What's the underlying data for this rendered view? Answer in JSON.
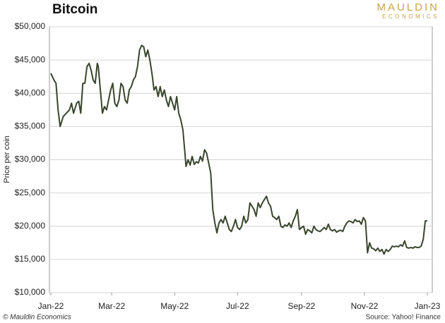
{
  "chart_data": {
    "type": "line",
    "title": "Bitcoin",
    "brand": "MAULDIN",
    "brand_sub": "ECONOMICS",
    "y_label": "Price per coin",
    "footer": "© Mauldin Economics",
    "source": "Source: Yahoo! Finance",
    "xlim": [
      0,
      365
    ],
    "xticks": [
      {
        "value": 0,
        "label": "Jan-22"
      },
      {
        "value": 59,
        "label": "Mar-22"
      },
      {
        "value": 120,
        "label": "May-22"
      },
      {
        "value": 181,
        "label": "Jul-22"
      },
      {
        "value": 243,
        "label": "Sep-22"
      },
      {
        "value": 304,
        "label": "Nov-22"
      },
      {
        "value": 365,
        "label": "Jan-23"
      }
    ],
    "ylim": [
      10000,
      50000
    ],
    "yticks": [
      {
        "value": 10000,
        "label": "$10,000"
      },
      {
        "value": 15000,
        "label": "$15,000"
      },
      {
        "value": 20000,
        "label": "$20,000"
      },
      {
        "value": 25000,
        "label": "$25,000"
      },
      {
        "value": 30000,
        "label": "$30,000"
      },
      {
        "value": 35000,
        "label": "$35,000"
      },
      {
        "value": 40000,
        "label": "$40,000"
      },
      {
        "value": 45000,
        "label": "$45,000"
      },
      {
        "value": 50000,
        "label": "$50,000"
      }
    ],
    "grid": true,
    "color": "#39452c",
    "x": [
      0,
      3,
      5,
      7,
      9,
      12,
      15,
      18,
      20,
      22,
      25,
      27,
      29,
      31,
      33,
      35,
      37,
      39,
      41,
      43,
      45,
      46,
      48,
      50,
      52,
      54,
      56,
      58,
      60,
      62,
      64,
      66,
      68,
      70,
      72,
      74,
      76,
      78,
      80,
      82,
      84,
      86,
      88,
      90,
      92,
      94,
      96,
      98,
      100,
      102,
      104,
      106,
      108,
      110,
      112,
      114,
      116,
      118,
      120,
      122,
      124,
      126,
      128,
      130,
      131,
      133,
      135,
      137,
      139,
      141,
      143,
      145,
      147,
      149,
      151,
      153,
      155,
      157,
      159,
      161,
      163,
      165,
      167,
      169,
      171,
      173,
      175,
      177,
      179,
      181,
      183,
      185,
      187,
      189,
      191,
      193,
      195,
      197,
      199,
      201,
      203,
      205,
      207,
      209,
      211,
      213,
      215,
      217,
      219,
      221,
      223,
      225,
      227,
      229,
      231,
      233,
      235,
      237,
      239,
      241,
      243,
      245,
      247,
      249,
      251,
      253,
      255,
      257,
      259,
      261,
      263,
      265,
      267,
      269,
      271,
      273,
      275,
      277,
      279,
      281,
      283,
      285,
      287,
      289,
      291,
      293,
      295,
      297,
      299,
      301,
      303,
      305,
      307,
      309,
      311,
      313,
      315,
      317,
      319,
      321,
      323,
      325,
      327,
      329,
      331,
      333,
      335,
      337,
      339,
      341,
      343,
      345,
      347,
      349,
      351,
      353,
      355,
      357,
      359,
      361,
      363,
      365
    ],
    "values": [
      43000,
      42000,
      41500,
      37500,
      35000,
      36500,
      37000,
      37500,
      38500,
      37000,
      38500,
      38800,
      37000,
      41500,
      41500,
      44000,
      44500,
      43500,
      42000,
      41500,
      44500,
      44000,
      40500,
      37000,
      38000,
      37500,
      39000,
      40500,
      41500,
      38500,
      38000,
      39000,
      41500,
      41000,
      39000,
      38500,
      40500,
      41000,
      42000,
      42500,
      44000,
      46500,
      47200,
      47000,
      45500,
      46500,
      45000,
      43000,
      40500,
      41000,
      39500,
      41000,
      39500,
      40500,
      39000,
      38000,
      39500,
      38500,
      37500,
      39500,
      37000,
      36000,
      34500,
      31000,
      29000,
      30000,
      29200,
      30500,
      29300,
      29700,
      29500,
      30500,
      29800,
      31500,
      31000,
      29500,
      28000,
      22500,
      20500,
      19000,
      20500,
      21000,
      20500,
      21500,
      20500,
      19500,
      19200,
      20000,
      21000,
      19800,
      19500,
      20000,
      21500,
      20500,
      21000,
      23500,
      23000,
      22500,
      21500,
      23500,
      22800,
      23500,
      24000,
      24500,
      23500,
      23000,
      21500,
      21300,
      21000,
      21500,
      20000,
      19800,
      20200,
      20000,
      20500,
      19800,
      20800,
      21500,
      22500,
      19500,
      19800,
      20000,
      18800,
      19500,
      19300,
      19000,
      20000,
      19500,
      19300,
      19200,
      19500,
      19800,
      19500,
      20300,
      19500,
      19300,
      19500,
      19100,
      19300,
      19400,
      19200,
      20000,
      20500,
      20800,
      20700,
      20500,
      21000,
      20700,
      20800,
      20300,
      21300,
      20800,
      16000,
      17500,
      16700,
      16600,
      16300,
      16700,
      16200,
      16500,
      15800,
      16500,
      16200,
      16500,
      17000,
      16900,
      17000,
      16900,
      17200,
      17000,
      17800,
      16800,
      16700,
      16800,
      16700,
      16900,
      16800,
      16800,
      17000,
      18000,
      20800,
      20800
    ]
  }
}
